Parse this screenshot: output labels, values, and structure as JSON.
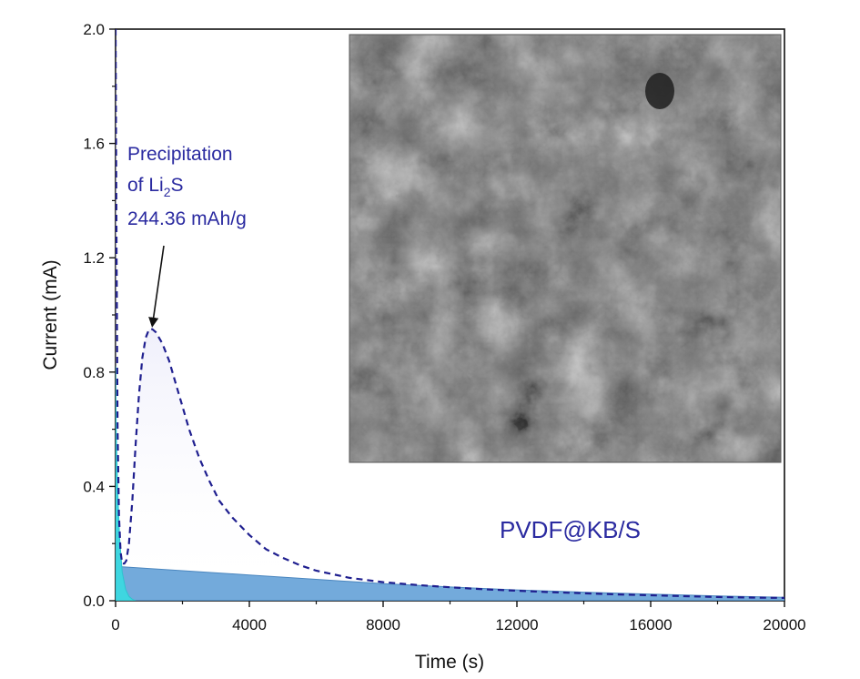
{
  "chart_data": {
    "type": "area",
    "xlabel": "Time (s)",
    "ylabel": "Current (mA)",
    "xlim": [
      0,
      20000
    ],
    "ylim": [
      0,
      2.0
    ],
    "xticks": [
      "0",
      "4000",
      "8000",
      "12000",
      "16000",
      "20000"
    ],
    "yticks": [
      "0.0",
      "0.4",
      "0.8",
      "1.2",
      "1.6",
      "2.0"
    ],
    "grid": false,
    "series": [
      {
        "style": "dashed line, gradient fill",
        "color": "#1f1f8f",
        "x": [
          0,
          30,
          60,
          100,
          150,
          200,
          260,
          320,
          400,
          500,
          600,
          700,
          800,
          900,
          1000,
          1100,
          1200,
          1400,
          1600,
          1800,
          2000,
          2200,
          2500,
          2800,
          3100,
          3500,
          4000,
          4500,
          5000,
          5500,
          6000,
          7000,
          8000,
          9000,
          10000,
          11000,
          12000,
          13000,
          14000,
          15000,
          16000,
          17000,
          18000,
          19000,
          20000
        ],
        "y": [
          2.0,
          1.2,
          0.6,
          0.3,
          0.17,
          0.13,
          0.13,
          0.14,
          0.2,
          0.35,
          0.55,
          0.72,
          0.85,
          0.92,
          0.95,
          0.95,
          0.94,
          0.9,
          0.84,
          0.76,
          0.68,
          0.6,
          0.5,
          0.42,
          0.35,
          0.29,
          0.23,
          0.18,
          0.15,
          0.125,
          0.105,
          0.08,
          0.065,
          0.055,
          0.047,
          0.04,
          0.035,
          0.03,
          0.026,
          0.022,
          0.019,
          0.016,
          0.013,
          0.011,
          0.01
        ]
      },
      {
        "style": "filled area",
        "color": "#5b9bd5",
        "x": [
          0,
          10,
          2000,
          4000,
          6000,
          8000,
          10000,
          12000,
          14000,
          16000,
          18000,
          20000
        ],
        "y": [
          0,
          0.12,
          0.105,
          0.09,
          0.075,
          0.06,
          0.048,
          0.038,
          0.03,
          0.023,
          0.017,
          0.012
        ]
      },
      {
        "style": "filled area",
        "color": "#3fd6e0",
        "x": [
          0,
          20,
          60,
          120,
          200,
          300,
          400,
          500,
          600
        ],
        "y": [
          0.82,
          0.6,
          0.4,
          0.22,
          0.1,
          0.04,
          0.015,
          0.005,
          0
        ]
      }
    ],
    "annotations": {
      "line1": "Precipitation",
      "line2_prefix": "of Li",
      "line2_sub": "2",
      "line2_suffix": "S",
      "line3": "244.36 mAh/g",
      "sample": "PVDF@KB/S",
      "arrow_target": {
        "x": 1100,
        "y": 0.95
      },
      "color": "#2a2aa0"
    },
    "inset": {
      "type": "SEM micrograph (grayscale)"
    }
  }
}
